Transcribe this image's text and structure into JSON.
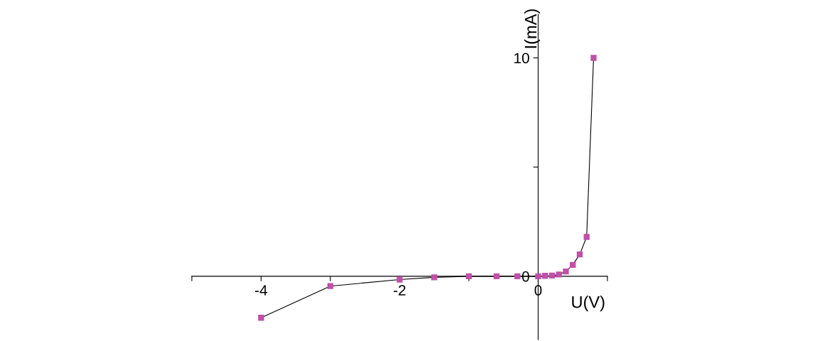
{
  "chart_data": {
    "type": "line",
    "xlabel": "U(V)",
    "ylabel": "I(mA)",
    "x": [
      -4,
      -3,
      -2,
      -1.5,
      -1,
      -0.6,
      -0.3,
      0,
      0.1,
      0.2,
      0.3,
      0.4,
      0.5,
      0.6,
      0.7,
      0.8
    ],
    "series": [
      {
        "color": "#c050a8",
        "values": [
          -1.9,
          -0.45,
          -0.15,
          -0.05,
          0,
          0,
          0,
          0,
          0.02,
          0.03,
          0.08,
          0.22,
          0.52,
          1.0,
          1.8,
          10
        ]
      }
    ],
    "xlim": [
      -5,
      1
    ],
    "xticks": [
      {
        "value": -5,
        "label": null
      },
      -4,
      {
        "value": -3,
        "label": null
      },
      -2,
      {
        "value": -1,
        "label": null
      },
      0,
      {
        "value": 1,
        "label": null
      }
    ],
    "ylim": [
      -2.9,
      12
    ],
    "yticks": [
      0,
      {
        "value": 5,
        "label": null
      },
      10
    ],
    "marker": "square",
    "line_style": "solid",
    "grid": false,
    "legend": false
  }
}
